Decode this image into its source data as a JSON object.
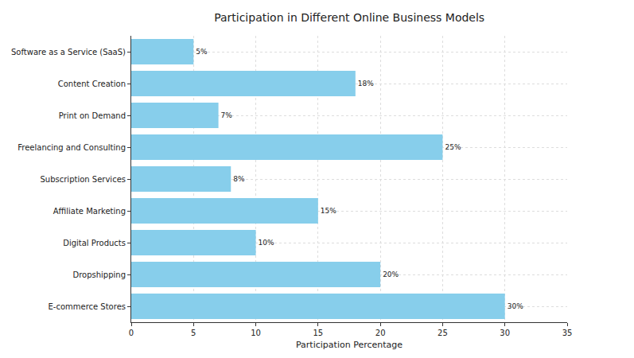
{
  "chart_data": {
    "type": "bar",
    "orientation": "horizontal",
    "title": "Participation in Different Online Business Models",
    "x_label": "Participation Percentage",
    "categories": [
      "E-commerce Stores",
      "Dropshipping",
      "Digital Products",
      "Affiliate Marketing",
      "Subscription Services",
      "Freelancing and Consulting",
      "Print on Demand",
      "Content Creation",
      "Software as a Service (SaaS)"
    ],
    "values": [
      30,
      20,
      10,
      15,
      8,
      25,
      7,
      18,
      5
    ],
    "value_labels": [
      "30%",
      "20%",
      "10%",
      "15%",
      "8%",
      "25%",
      "7%",
      "18%",
      "5%"
    ],
    "data_labels": true,
    "color": "#87ceeb",
    "xlim": [
      0,
      35
    ],
    "xticks": [
      0,
      5,
      10,
      15,
      20,
      25,
      30,
      35
    ],
    "grid": true
  }
}
